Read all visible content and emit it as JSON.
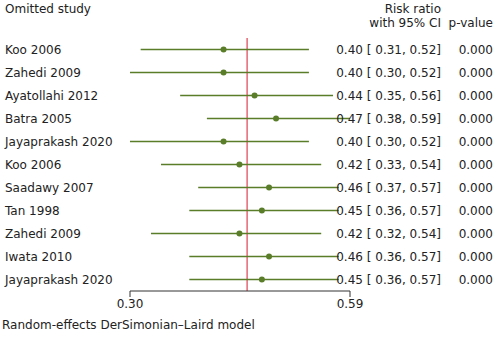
{
  "chart_data": {
    "type": "forest",
    "headers": {
      "study": "Omitted study",
      "estimate": [
        "Risk ratio",
        "with 95% CI"
      ],
      "p_value": "p-value"
    },
    "caption": "Random-effects DerSimonian–Laird model",
    "categories": [
      "Koo 2006",
      "Zahedi 2009",
      "Ayatollahi 2012",
      "Batra 2005",
      "Jayaprakash 2020",
      "Koo 2006",
      "Saadawy 2007",
      "Tan 1998",
      "Zahedi 2009",
      "Iwata 2010",
      "Jayaprakash 2020"
    ],
    "values": [
      0.4,
      0.4,
      0.44,
      0.47,
      0.4,
      0.42,
      0.46,
      0.45,
      0.42,
      0.46,
      0.45
    ],
    "ci_low": [
      0.31,
      0.3,
      0.35,
      0.38,
      0.3,
      0.33,
      0.37,
      0.36,
      0.32,
      0.36,
      0.36
    ],
    "ci_high": [
      0.52,
      0.52,
      0.56,
      0.59,
      0.52,
      0.54,
      0.57,
      0.57,
      0.54,
      0.57,
      0.57
    ],
    "value_labels": [
      "0.40 [ 0.31, 0.52]",
      "0.40 [ 0.30, 0.52]",
      "0.44 [ 0.35, 0.56]",
      "0.47 [ 0.38, 0.59]",
      "0.40 [ 0.30, 0.52]",
      "0.42 [ 0.33, 0.54]",
      "0.46 [ 0.37, 0.57]",
      "0.45 [ 0.36, 0.57]",
      "0.42 [ 0.32, 0.54]",
      "0.46 [ 0.36, 0.57]",
      "0.45 [ 0.36, 0.57]"
    ],
    "p_values": [
      "0.000",
      "0.000",
      "0.000",
      "0.000",
      "0.000",
      "0.000",
      "0.000",
      "0.000",
      "0.000",
      "0.000",
      "0.000"
    ],
    "reference_line": 0.43,
    "xlim": [
      0.3,
      0.59
    ],
    "xticks": [
      {
        "value": 0.3,
        "label": "0.30"
      },
      {
        "value": 0.59,
        "label": "0.59"
      }
    ],
    "log": "x",
    "color": "#5a7d2a"
  }
}
